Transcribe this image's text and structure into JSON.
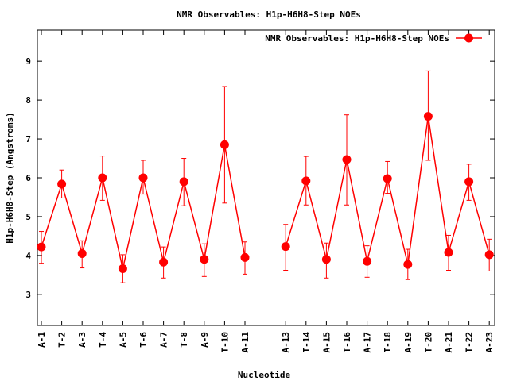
{
  "chart_data": {
    "type": "line",
    "title": "NMR Observables: H1p-H6H8-Step NOEs",
    "xlabel": "Nucleotide",
    "ylabel": "H1p-H6H8-Step (Angstroms)",
    "ylim": [
      2.2,
      9.8
    ],
    "yticks": [
      3,
      4,
      5,
      6,
      7,
      8,
      9
    ],
    "legend": "top-right",
    "grid": false,
    "categories": [
      "A-1",
      "T-2",
      "A-3",
      "T-4",
      "A-5",
      "T-6",
      "A-7",
      "T-8",
      "A-9",
      "T-10",
      "A-11",
      "",
      "A-13",
      "T-14",
      "A-15",
      "T-16",
      "A-17",
      "T-18",
      "A-19",
      "T-20",
      "A-21",
      "T-22",
      "A-23"
    ],
    "series": [
      {
        "name": "NMR Observables: H1p-H6H8-Step NOEs",
        "color": "#ff0000",
        "values": [
          4.22,
          5.84,
          4.05,
          6.0,
          3.66,
          6.0,
          3.83,
          5.9,
          3.9,
          6.85,
          3.95,
          null,
          4.23,
          5.92,
          3.9,
          6.47,
          3.85,
          5.98,
          3.77,
          7.58,
          4.08,
          5.9,
          4.02
        ],
        "err_low": [
          3.8,
          5.48,
          3.68,
          5.42,
          3.3,
          5.58,
          3.42,
          5.28,
          3.46,
          5.35,
          3.52,
          null,
          3.62,
          5.3,
          3.42,
          5.3,
          3.44,
          5.6,
          3.38,
          6.45,
          3.62,
          5.42,
          3.6
        ],
        "err_high": [
          4.62,
          6.2,
          4.38,
          6.56,
          4.02,
          6.45,
          4.22,
          6.5,
          4.3,
          8.35,
          4.35,
          null,
          4.8,
          6.55,
          4.32,
          7.62,
          4.25,
          6.42,
          4.16,
          8.75,
          4.52,
          6.35,
          4.42
        ]
      }
    ]
  }
}
